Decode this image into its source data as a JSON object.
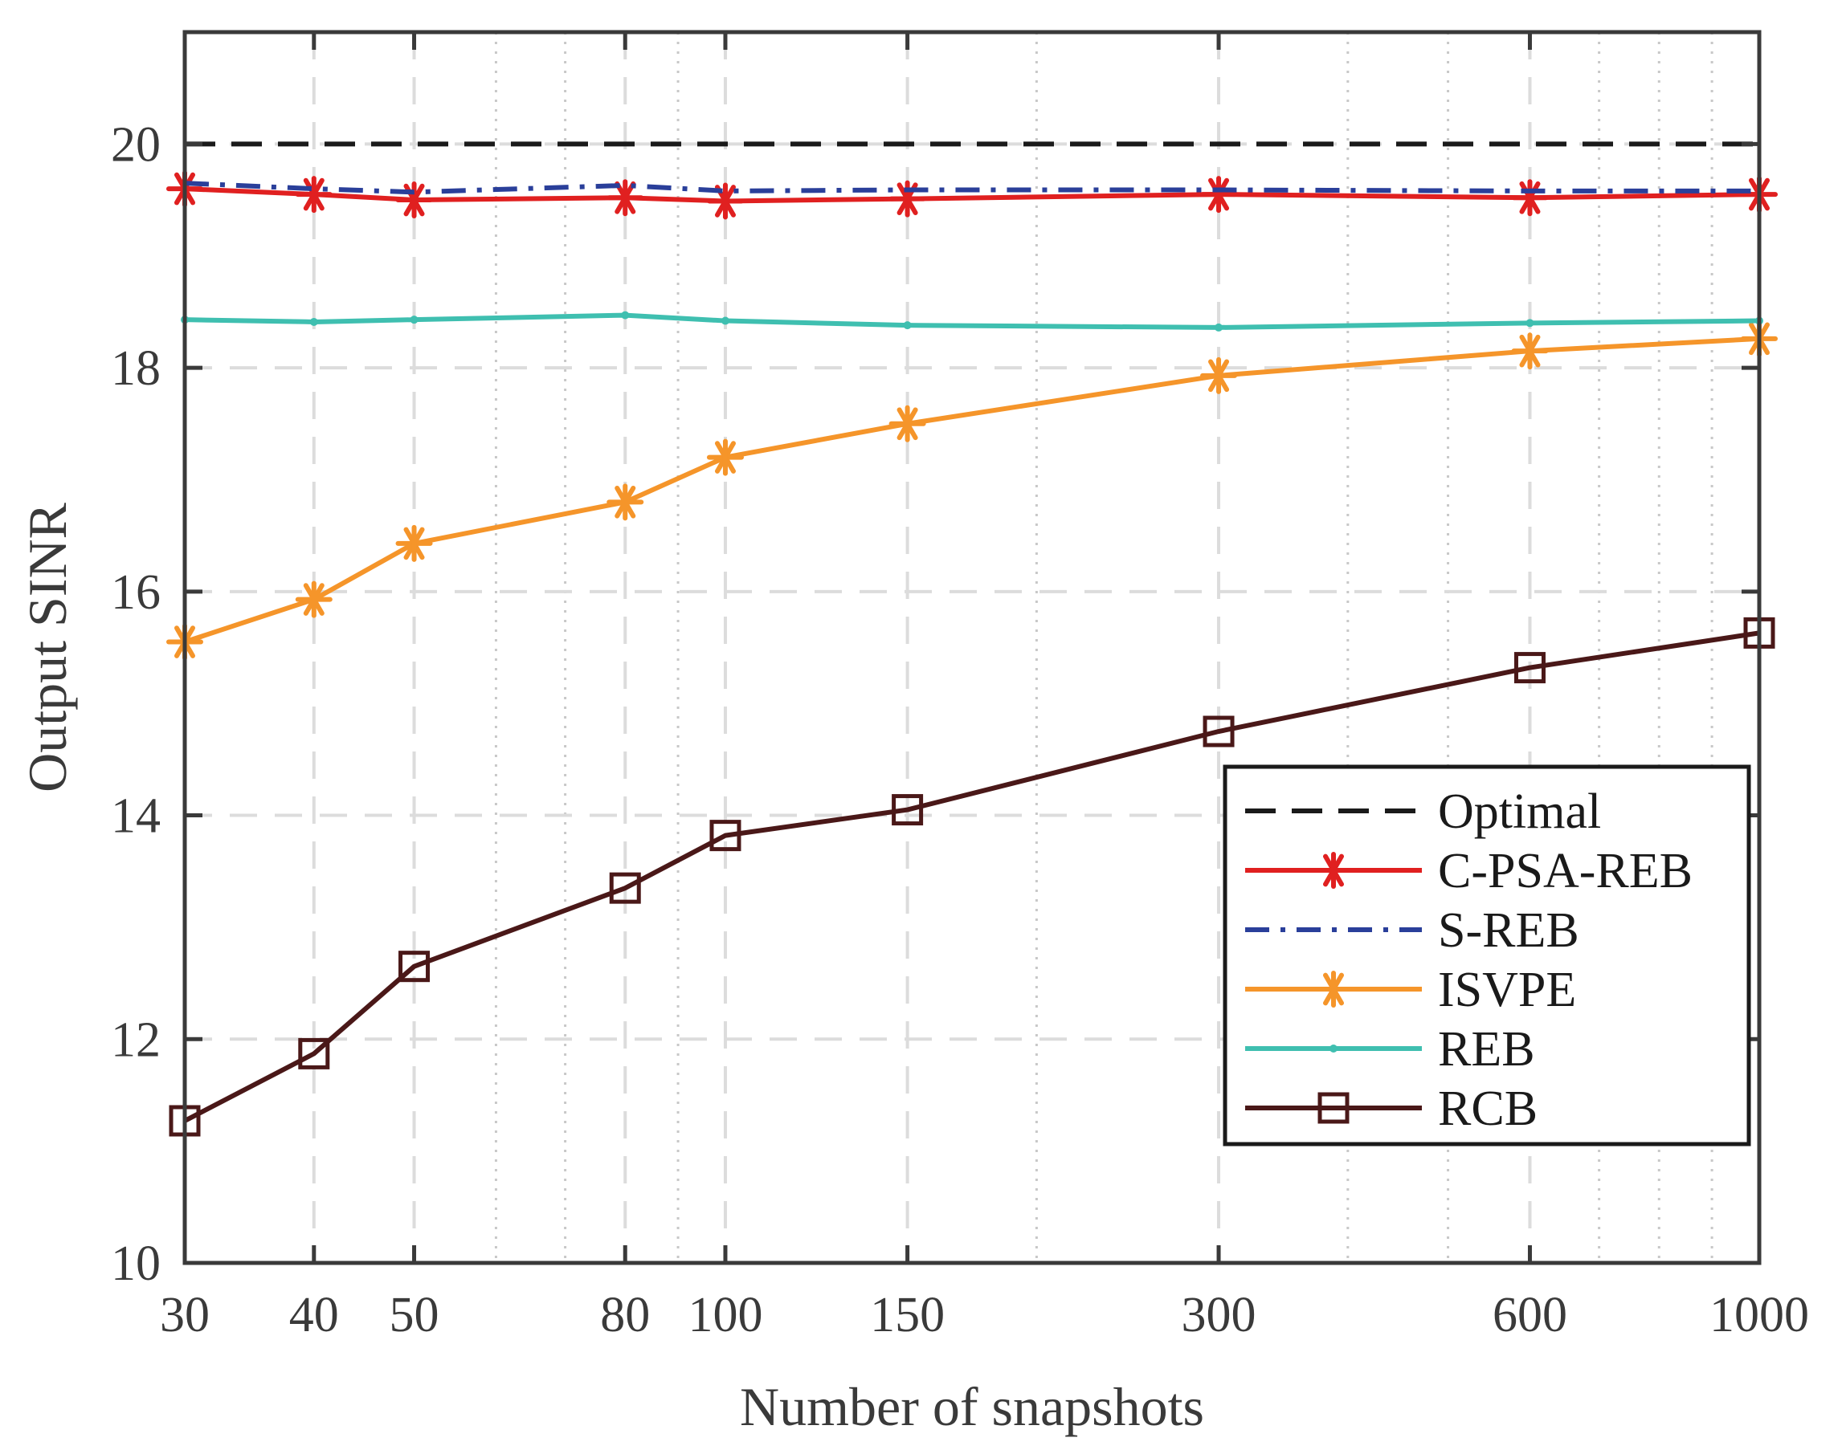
{
  "chart_data": {
    "type": "line",
    "xlabel": "Number of snapshots",
    "ylabel": "Output SINR",
    "x_scale": "log",
    "xlim": [
      30,
      1000
    ],
    "ylim": [
      10,
      21
    ],
    "x": [
      30,
      40,
      50,
      80,
      100,
      150,
      300,
      600,
      1000
    ],
    "x_ticks": [
      30,
      40,
      50,
      80,
      100,
      150,
      300,
      600,
      1000
    ],
    "x_tick_labels": [
      "30",
      "40",
      "50",
      "80",
      "100",
      "150",
      "300",
      "600",
      "1000"
    ],
    "y_ticks": [
      10,
      12,
      14,
      16,
      18,
      20
    ],
    "y_tick_labels": [
      "10",
      "12",
      "14",
      "16",
      "18",
      "20"
    ],
    "grid": true,
    "legend_position": "bottom-right",
    "series": [
      {
        "name": "Optimal",
        "color": "#1a1a1a",
        "line": "dashed",
        "marker": "none",
        "values": [
          20,
          20,
          20,
          20,
          20,
          20,
          20,
          20,
          20
        ]
      },
      {
        "name": "C-PSA-REB",
        "color": "#e02020",
        "line": "solid",
        "marker": "asterisk",
        "values": [
          19.6,
          19.55,
          19.5,
          19.52,
          19.49,
          19.51,
          19.55,
          19.52,
          19.55
        ]
      },
      {
        "name": "S-REB",
        "color": "#2a3f9a",
        "line": "dashdot",
        "marker": "none",
        "values": [
          19.65,
          19.6,
          19.57,
          19.63,
          19.58,
          19.59,
          19.59,
          19.58,
          19.58
        ]
      },
      {
        "name": "ISVPE",
        "color": "#f5952a",
        "line": "solid",
        "marker": "asterisk",
        "values": [
          15.55,
          15.93,
          16.43,
          16.8,
          17.2,
          17.5,
          17.93,
          18.15,
          18.26
        ]
      },
      {
        "name": "REB",
        "color": "#3fbfb0",
        "line": "solid",
        "marker": "dot",
        "values": [
          18.43,
          18.41,
          18.43,
          18.47,
          18.42,
          18.38,
          18.36,
          18.4,
          18.42
        ]
      },
      {
        "name": "RCB",
        "color": "#4a1818",
        "line": "solid",
        "marker": "square",
        "values": [
          11.27,
          11.87,
          12.65,
          13.35,
          13.82,
          14.05,
          14.75,
          15.32,
          15.63
        ]
      }
    ]
  }
}
